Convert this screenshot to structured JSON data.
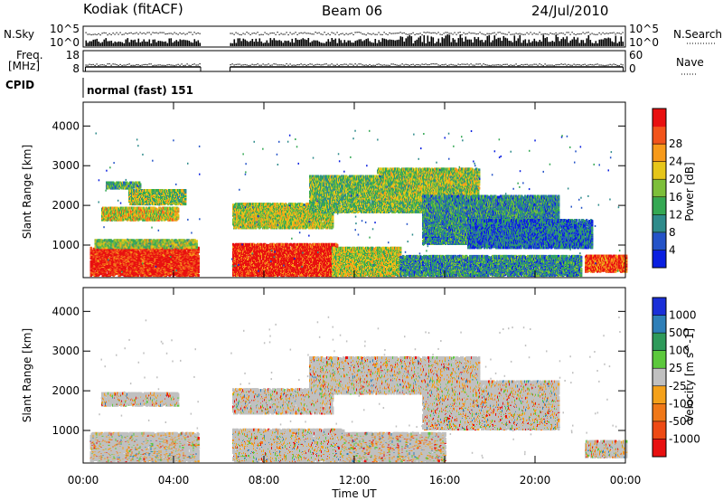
{
  "header": {
    "station": "Kodiak (fitACF)",
    "beam": "Beam 06",
    "date": "24/Jul/2010"
  },
  "status_panels": {
    "nsky_label": "N.Sky",
    "nsky_ticks": [
      "10^5",
      "10^0"
    ],
    "nsearch_label": "N.Search",
    "nsearch_ticks": [
      "10^5",
      "10^0"
    ],
    "freq_label_1": "Freq.",
    "freq_label_2": "[MHz]",
    "freq_ticks": [
      "18",
      "8"
    ],
    "nave_label": "Nave",
    "nave_ticks": [
      "60",
      "0"
    ],
    "cpid_label": "CPID",
    "cpid_value": "normal (fast) 151"
  },
  "chart_data": [
    {
      "type": "heatmap",
      "name": "power",
      "ylabel": "Slant Range [km]",
      "xlabel": "Time UT",
      "xticks": [
        "00:00",
        "04:00",
        "08:00",
        "12:00",
        "16:00",
        "20:00",
        "00:00"
      ],
      "xlim_hours": [
        0,
        24
      ],
      "yticks": [
        "1000",
        "2000",
        "3000",
        "4000"
      ],
      "ylim_km": [
        180,
        4600
      ],
      "data_gap_hours": [
        5.2,
        6.5
      ],
      "colorbar": {
        "label": "Power [dB]",
        "ticks": [
          "4",
          "8",
          "12",
          "16",
          "20",
          "24",
          "28"
        ],
        "range": [
          0,
          30
        ],
        "colors": [
          "#0a1fe0",
          "#2453c8",
          "#2e8b8b",
          "#34a853",
          "#7dbf3a",
          "#e6c619",
          "#f79a1a",
          "#f2541b",
          "#e81010"
        ]
      },
      "regions": [
        {
          "t0": 0.3,
          "t1": 5.1,
          "r0": 200,
          "r1": 900,
          "level": 0.95
        },
        {
          "t0": 0.5,
          "t1": 5.0,
          "r0": 900,
          "r1": 1100,
          "level": 0.5
        },
        {
          "t0": 0.8,
          "t1": 4.2,
          "r0": 1600,
          "r1": 1900,
          "level": 0.6
        },
        {
          "t0": 2.0,
          "t1": 4.5,
          "r0": 2000,
          "r1": 2350,
          "level": 0.5
        },
        {
          "t0": 1.0,
          "t1": 2.5,
          "r0": 2400,
          "r1": 2550,
          "level": 0.4
        },
        {
          "t0": 6.6,
          "t1": 11.2,
          "r0": 200,
          "r1": 1000,
          "level": 0.95
        },
        {
          "t0": 11.0,
          "t1": 14.0,
          "r0": 200,
          "r1": 900,
          "level": 0.55
        },
        {
          "t0": 14.0,
          "t1": 22.0,
          "r0": 200,
          "r1": 700,
          "level": 0.3
        },
        {
          "t0": 22.2,
          "t1": 24.0,
          "r0": 300,
          "r1": 700,
          "level": 0.85
        },
        {
          "t0": 6.6,
          "t1": 11.0,
          "r0": 1400,
          "r1": 2000,
          "level": 0.55
        },
        {
          "t0": 10.0,
          "t1": 15.0,
          "r0": 1800,
          "r1": 2700,
          "level": 0.45
        },
        {
          "t0": 13.0,
          "t1": 17.5,
          "r0": 2100,
          "r1": 2900,
          "level": 0.5
        },
        {
          "t0": 15.0,
          "t1": 21.0,
          "r0": 1000,
          "r1": 2200,
          "level": 0.3
        },
        {
          "t0": 17.0,
          "t1": 22.5,
          "r0": 900,
          "r1": 1600,
          "level": 0.2
        }
      ]
    },
    {
      "type": "heatmap",
      "name": "velocity",
      "ylabel": "Slant Range [km]",
      "xlabel": "Time UT",
      "xticks": [
        "00:00",
        "04:00",
        "08:00",
        "12:00",
        "16:00",
        "20:00",
        "00:00"
      ],
      "xlim_hours": [
        0,
        24
      ],
      "yticks": [
        "1000",
        "2000",
        "3000",
        "4000"
      ],
      "ylim_km": [
        180,
        4600
      ],
      "data_gap_hours": [
        5.2,
        6.5
      ],
      "colorbar": {
        "label": "Velocity [m s^-1]",
        "ticks": [
          "1000",
          "500",
          "100",
          "25",
          "-25",
          "-100",
          "-500",
          "-1000"
        ],
        "range": [
          -1200,
          1200
        ],
        "colors": [
          "#1a2fd8",
          "#2e7fb8",
          "#2e9a5a",
          "#5cc83c",
          "#c0c0c0",
          "#f4a11a",
          "#f07818",
          "#ee4a14",
          "#e81010"
        ]
      },
      "regions": [
        {
          "t0": 0.3,
          "t1": 5.1,
          "r0": 200,
          "r1": 900,
          "level": 0.5
        },
        {
          "t0": 6.6,
          "t1": 11.5,
          "r0": 200,
          "r1": 1000,
          "level": 0.5
        },
        {
          "t0": 11.5,
          "t1": 16.0,
          "r0": 200,
          "r1": 900,
          "level": 0.5
        },
        {
          "t0": 22.2,
          "t1": 24.0,
          "r0": 300,
          "r1": 700,
          "level": 0.5
        },
        {
          "t0": 0.8,
          "t1": 4.2,
          "r0": 1600,
          "r1": 1900,
          "level": 0.5
        },
        {
          "t0": 6.6,
          "t1": 11.0,
          "r0": 1400,
          "r1": 2000,
          "level": 0.5
        },
        {
          "t0": 10.0,
          "t1": 17.5,
          "r0": 1900,
          "r1": 2800,
          "level": 0.5
        },
        {
          "t0": 15.0,
          "t1": 21.0,
          "r0": 1000,
          "r1": 2200,
          "level": 0.5
        }
      ]
    }
  ]
}
